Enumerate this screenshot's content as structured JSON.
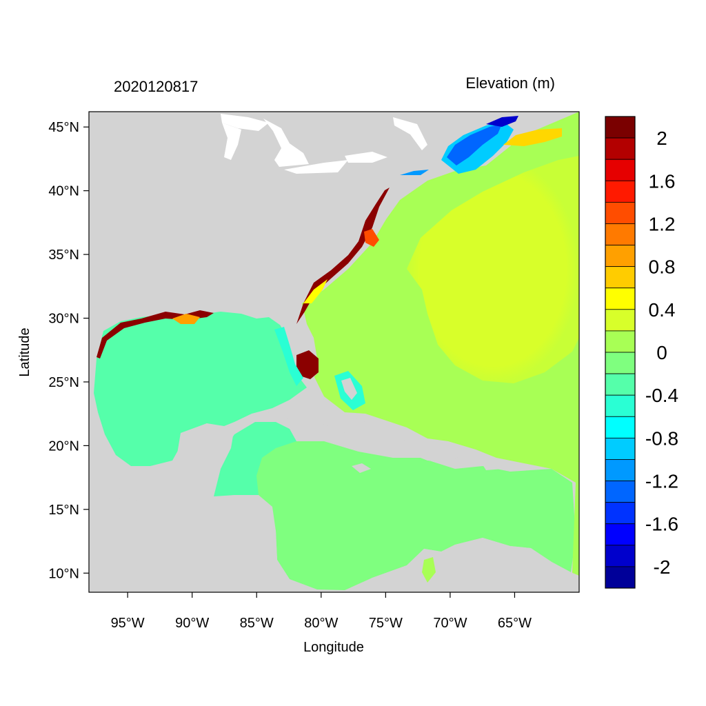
{
  "map": {
    "left_title": "2020120817",
    "right_title": "Elevation (m)",
    "x_axis_label": "Longitude",
    "y_axis_label": "Latitude",
    "extent": {
      "lon_min": -98,
      "lon_max": -60,
      "lat_min": 8.5,
      "lat_max": 46.2
    },
    "lon_ticks": [
      {
        "value": -95,
        "label": "95°W"
      },
      {
        "value": -90,
        "label": "90°W"
      },
      {
        "value": -85,
        "label": "85°W"
      },
      {
        "value": -80,
        "label": "80°W"
      },
      {
        "value": -75,
        "label": "75°W"
      },
      {
        "value": -70,
        "label": "70°W"
      },
      {
        "value": -65,
        "label": "65°W"
      }
    ],
    "lat_ticks": [
      {
        "value": 45,
        "label": "45°N"
      },
      {
        "value": 40,
        "label": "40°N"
      },
      {
        "value": 35,
        "label": "35°N"
      },
      {
        "value": 30,
        "label": "30°N"
      },
      {
        "value": 25,
        "label": "25°N"
      },
      {
        "value": 20,
        "label": "20°N"
      },
      {
        "value": 15,
        "label": "15°N"
      },
      {
        "value": 10,
        "label": "10°N"
      }
    ],
    "land_color": "#d3d3d3"
  },
  "colorbar": {
    "colors_top_to_bottom": [
      "#7a0000",
      "#b30000",
      "#e60000",
      "#ff1a00",
      "#ff4d00",
      "#ff7a00",
      "#ffa000",
      "#ffcc00",
      "#ffff00",
      "#d8ff2a",
      "#a8ff55",
      "#7fff7f",
      "#55ffaa",
      "#2affd4",
      "#00ffff",
      "#00ccff",
      "#0099ff",
      "#0066ff",
      "#0033ff",
      "#0000ff",
      "#0000cc",
      "#000099"
    ],
    "labels": [
      "2",
      "1.6",
      "1.2",
      "0.8",
      "0.4",
      "0",
      "-0.4",
      "-0.8",
      "-1.2",
      "-1.6",
      "-2"
    ]
  }
}
